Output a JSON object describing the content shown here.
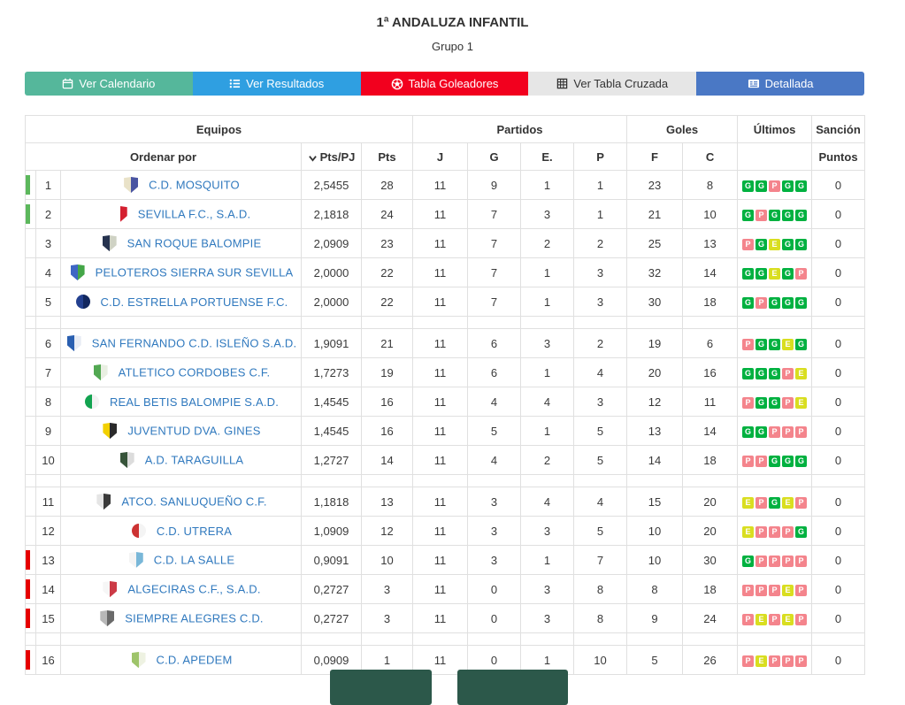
{
  "page": {
    "title": "1ª ANDALUZA INFANTIL",
    "subtitle": "Grupo 1"
  },
  "tabs": [
    {
      "label": "Ver Calendario",
      "icon": "calendar-icon",
      "bg": "#55b79b",
      "fg": "#ffffff"
    },
    {
      "label": "Ver Resultados",
      "icon": "list-icon",
      "bg": "#2f9fe1",
      "fg": "#ffffff"
    },
    {
      "label": "Tabla Goleadores",
      "icon": "soccer-ball-icon",
      "bg": "#f2001e",
      "fg": "#ffffff"
    },
    {
      "label": "Ver Tabla Cruzada",
      "icon": "table-grid-icon",
      "bg": "#e6e6e6",
      "fg": "#333333"
    },
    {
      "label": "Detallada",
      "icon": "detail-list-icon",
      "bg": "#4a78c5",
      "fg": "#ffffff"
    }
  ],
  "table": {
    "group_headers": {
      "equipos": "Equipos",
      "partidos": "Partidos",
      "goles": "Goles",
      "ultimos": "Últimos",
      "sancion": "Sanción"
    },
    "sub_headers": {
      "ordenar": "Ordenar por",
      "ptspj": "Pts/PJ",
      "pts": "Pts",
      "j": "J",
      "g": "G",
      "e": "E.",
      "p": "P",
      "f": "F",
      "c": "C",
      "puntos": "Puntos"
    },
    "legend_colors": {
      "G": "#00b140",
      "P": "#f4848c",
      "E": "#d9de20"
    },
    "marker_colors": {
      "green": "#5cb85c",
      "red": "#e60000"
    },
    "group_breaks_after": [
      5,
      10,
      15
    ],
    "rows": [
      {
        "pos": 1,
        "team": "C.D. MOSQUITO",
        "ptspj": "2,5455",
        "pts": "28",
        "j": "11",
        "g": "9",
        "e": "1",
        "p": "1",
        "f": "23",
        "c": "8",
        "last5": [
          "G",
          "G",
          "P",
          "G",
          "G"
        ],
        "sancion": "0",
        "marker": "green",
        "crest": [
          "#e9e2c8",
          "#4a55a2"
        ],
        "crest_shape": "shield"
      },
      {
        "pos": 2,
        "team": "SEVILLA F.C., S.A.D.",
        "ptspj": "2,1818",
        "pts": "24",
        "j": "11",
        "g": "7",
        "e": "3",
        "p": "1",
        "f": "21",
        "c": "10",
        "last5": [
          "G",
          "P",
          "G",
          "G",
          "G"
        ],
        "sancion": "0",
        "marker": "green",
        "crest": [
          "#ffffff",
          "#d42030"
        ],
        "crest_shape": "shield"
      },
      {
        "pos": 3,
        "team": "SAN ROQUE BALOMPIE",
        "ptspj": "2,0909",
        "pts": "23",
        "j": "11",
        "g": "7",
        "e": "2",
        "p": "2",
        "f": "25",
        "c": "13",
        "last5": [
          "P",
          "G",
          "E",
          "G",
          "G"
        ],
        "sancion": "0",
        "marker": null,
        "crest": [
          "#26334f",
          "#cfd2c4"
        ],
        "crest_shape": "shield"
      },
      {
        "pos": 4,
        "team": "PELOTEROS SIERRA SUR SEVILLA",
        "ptspj": "2,0000",
        "pts": "22",
        "j": "11",
        "g": "7",
        "e": "1",
        "p": "3",
        "f": "32",
        "c": "14",
        "last5": [
          "G",
          "G",
          "E",
          "G",
          "P"
        ],
        "sancion": "0",
        "marker": null,
        "crest": [
          "#3e66c4",
          "#44a648"
        ],
        "crest_shape": "shield"
      },
      {
        "pos": 5,
        "team": "C.D. ESTRELLA PORTUENSE F.C.",
        "ptspj": "2,0000",
        "pts": "22",
        "j": "11",
        "g": "7",
        "e": "1",
        "p": "3",
        "f": "30",
        "c": "18",
        "last5": [
          "G",
          "P",
          "G",
          "G",
          "G"
        ],
        "sancion": "0",
        "marker": null,
        "crest": [
          "#23408f",
          "#12275e"
        ],
        "crest_shape": "circle"
      },
      {
        "pos": 6,
        "team": "SAN FERNANDO C.D. ISLEÑO S.A.D.",
        "ptspj": "1,9091",
        "pts": "21",
        "j": "11",
        "g": "6",
        "e": "3",
        "p": "2",
        "f": "19",
        "c": "6",
        "last5": [
          "P",
          "G",
          "G",
          "E",
          "G"
        ],
        "sancion": "0",
        "marker": null,
        "crest": [
          "#2a5fb0",
          "#e8ecf4"
        ],
        "crest_shape": "shield"
      },
      {
        "pos": 7,
        "team": "ATLETICO CORDOBES C.F.",
        "ptspj": "1,7273",
        "pts": "19",
        "j": "11",
        "g": "6",
        "e": "1",
        "p": "4",
        "f": "20",
        "c": "16",
        "last5": [
          "G",
          "G",
          "G",
          "P",
          "E"
        ],
        "sancion": "0",
        "marker": null,
        "crest": [
          "#52a852",
          "#e9efe2"
        ],
        "crest_shape": "shield"
      },
      {
        "pos": 8,
        "team": "REAL BETIS BALOMPIE S.A.D.",
        "ptspj": "1,4545",
        "pts": "16",
        "j": "11",
        "g": "4",
        "e": "4",
        "p": "3",
        "f": "12",
        "c": "11",
        "last5": [
          "P",
          "G",
          "G",
          "P",
          "E"
        ],
        "sancion": "0",
        "marker": null,
        "crest": [
          "#12a350",
          "#f2f2f2"
        ],
        "crest_shape": "circle"
      },
      {
        "pos": 9,
        "team": "JUVENTUD DVA. GINES",
        "ptspj": "1,4545",
        "pts": "16",
        "j": "11",
        "g": "5",
        "e": "1",
        "p": "5",
        "f": "13",
        "c": "14",
        "last5": [
          "G",
          "G",
          "P",
          "P",
          "P"
        ],
        "sancion": "0",
        "marker": null,
        "crest": [
          "#f2d000",
          "#2a2a2a"
        ],
        "crest_shape": "shield"
      },
      {
        "pos": 10,
        "team": "A.D. TARAGUILLA",
        "ptspj": "1,2727",
        "pts": "14",
        "j": "11",
        "g": "4",
        "e": "2",
        "p": "5",
        "f": "14",
        "c": "18",
        "last5": [
          "P",
          "P",
          "G",
          "G",
          "G"
        ],
        "sancion": "0",
        "marker": null,
        "crest": [
          "#37543a",
          "#dcdcdc"
        ],
        "crest_shape": "shield"
      },
      {
        "pos": 11,
        "team": "ATCO. SANLUQUEÑO C.F.",
        "ptspj": "1,1818",
        "pts": "13",
        "j": "11",
        "g": "3",
        "e": "4",
        "p": "4",
        "f": "15",
        "c": "20",
        "last5": [
          "E",
          "P",
          "G",
          "E",
          "P"
        ],
        "sancion": "0",
        "marker": null,
        "crest": [
          "#e5e5e5",
          "#3a3a3a"
        ],
        "crest_shape": "shield"
      },
      {
        "pos": 12,
        "team": "C.D. UTRERA",
        "ptspj": "1,0909",
        "pts": "12",
        "j": "11",
        "g": "3",
        "e": "3",
        "p": "5",
        "f": "10",
        "c": "20",
        "last5": [
          "E",
          "P",
          "P",
          "P",
          "G"
        ],
        "sancion": "0",
        "marker": null,
        "crest": [
          "#cc3333",
          "#f4f4f4"
        ],
        "crest_shape": "circle"
      },
      {
        "pos": 13,
        "team": "C.D. LA SALLE",
        "ptspj": "0,9091",
        "pts": "10",
        "j": "11",
        "g": "3",
        "e": "1",
        "p": "7",
        "f": "10",
        "c": "30",
        "last5": [
          "G",
          "P",
          "P",
          "P",
          "P"
        ],
        "sancion": "0",
        "marker": "red",
        "crest": [
          "#f4f4f4",
          "#79b7d8"
        ],
        "crest_shape": "shield"
      },
      {
        "pos": 14,
        "team": "ALGECIRAS C.F., S.A.D.",
        "ptspj": "0,2727",
        "pts": "3",
        "j": "11",
        "g": "0",
        "e": "3",
        "p": "8",
        "f": "8",
        "c": "18",
        "last5": [
          "P",
          "P",
          "P",
          "E",
          "P"
        ],
        "sancion": "0",
        "marker": "red",
        "crest": [
          "#f6f6f6",
          "#cc3a46"
        ],
        "crest_shape": "shield"
      },
      {
        "pos": 15,
        "team": "SIEMPRE ALEGRES C.D.",
        "ptspj": "0,2727",
        "pts": "3",
        "j": "11",
        "g": "0",
        "e": "3",
        "p": "8",
        "f": "9",
        "c": "24",
        "last5": [
          "P",
          "E",
          "P",
          "E",
          "P"
        ],
        "sancion": "0",
        "marker": "red",
        "crest": [
          "#b8b8b8",
          "#6a6a6a"
        ],
        "crest_shape": "shield"
      },
      {
        "pos": 16,
        "team": "C.D. APEDEM",
        "ptspj": "0,0909",
        "pts": "1",
        "j": "11",
        "g": "0",
        "e": "1",
        "p": "10",
        "f": "5",
        "c": "26",
        "last5": [
          "P",
          "E",
          "P",
          "P",
          "P"
        ],
        "sancion": "0",
        "marker": "red",
        "crest": [
          "#9ec46a",
          "#eef2e2"
        ],
        "crest_shape": "shield"
      }
    ]
  },
  "footer": {
    "partial_button_color": "#2c584a"
  }
}
